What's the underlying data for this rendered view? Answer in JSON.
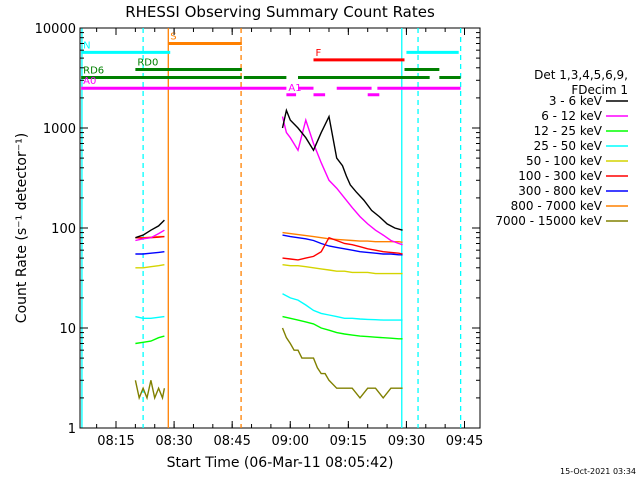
{
  "chart_data": {
    "type": "line",
    "title": "RHESSI Observing Summary Count Rates",
    "xlabel": "Start Time (06-Mar-11 08:05:42)",
    "ylabel": "Count Rate (s⁻¹ detector⁻¹)",
    "yscale": "log",
    "ylim": [
      1,
      10000
    ],
    "xlim_minutes_after_0800": [
      5.7,
      109.0
    ],
    "x_ticks": [
      {
        "label": "08:15",
        "t": 15
      },
      {
        "label": "08:30",
        "t": 30
      },
      {
        "label": "08:45",
        "t": 45
      },
      {
        "label": "09:00",
        "t": 60
      },
      {
        "label": "09:15",
        "t": 75
      },
      {
        "label": "09:30",
        "t": 90
      },
      {
        "label": "09:45",
        "t": 105
      }
    ],
    "y_ticks": [
      {
        "label": "1",
        "v": 1
      },
      {
        "label": "10",
        "v": 10
      },
      {
        "label": "100",
        "v": 100
      },
      {
        "label": "1000",
        "v": 1000
      },
      {
        "label": "10000",
        "v": 10000
      }
    ],
    "legend_title": [
      "Det 1,3,4,5,6,9,",
      "FDecim 1"
    ],
    "legend_placement": "right",
    "series": [
      {
        "name": "3 - 6 keV",
        "color": "#000000",
        "x": [
          20,
          22,
          24,
          26,
          27.5,
          58,
          59,
          60,
          62,
          64,
          66,
          68,
          70,
          72,
          73.5,
          74.5,
          75.5,
          77,
          79,
          81,
          83,
          85,
          87,
          89
        ],
        "y": [
          80,
          85,
          95,
          105,
          120,
          1000,
          1500,
          1200,
          1000,
          800,
          600,
          900,
          1300,
          500,
          420,
          330,
          270,
          230,
          190,
          150,
          130,
          110,
          100,
          95
        ]
      },
      {
        "name": "6 - 12 keV",
        "color": "#ff00ff",
        "x": [
          20,
          22,
          24,
          26,
          27.5,
          58,
          59,
          60,
          62,
          64,
          66,
          68,
          70,
          72,
          74,
          76,
          78,
          80,
          82,
          84,
          86,
          88,
          89
        ],
        "y": [
          75,
          78,
          80,
          88,
          95,
          1300,
          900,
          800,
          600,
          1200,
          700,
          450,
          300,
          250,
          200,
          160,
          130,
          110,
          95,
          85,
          75,
          70,
          68
        ]
      },
      {
        "name": "12 - 25 keV",
        "color": "#00ff00",
        "x": [
          20,
          22,
          24,
          26,
          27.5,
          58,
          60,
          62,
          64,
          66,
          68,
          70,
          72,
          74,
          76,
          78,
          80,
          82,
          84,
          86,
          88,
          89
        ],
        "y": [
          7,
          7.2,
          7.4,
          8,
          8.3,
          13,
          12.5,
          12,
          11.5,
          11,
          10,
          9.5,
          9,
          8.7,
          8.5,
          8.3,
          8.2,
          8.1,
          8,
          7.9,
          7.8,
          7.8
        ]
      },
      {
        "name": "25 - 50 keV",
        "color": "#00ffff",
        "x": [
          20,
          22,
          24,
          26,
          27.5,
          58,
          60,
          62,
          64,
          66,
          68,
          70,
          72,
          74,
          76,
          78,
          80,
          82,
          84,
          86,
          88,
          89
        ],
        "y": [
          13,
          12.5,
          12.5,
          12.8,
          13,
          22,
          20,
          19,
          17,
          15,
          14,
          13.5,
          13,
          12.5,
          12.5,
          12.3,
          12.2,
          12.1,
          12,
          12,
          12,
          12
        ]
      },
      {
        "name": "50 - 100 keV",
        "color": "#d4d400",
        "x": [
          20,
          22,
          24,
          26,
          27.5,
          58,
          60,
          62,
          64,
          66,
          68,
          70,
          72,
          74,
          76,
          78,
          80,
          82,
          84,
          86,
          88,
          89
        ],
        "y": [
          40,
          40,
          41,
          42,
          43,
          43,
          42,
          42,
          41,
          40,
          39,
          38,
          37,
          37,
          36,
          36,
          36,
          35,
          35,
          35,
          35,
          35
        ]
      },
      {
        "name": "100 - 300 keV",
        "color": "#ff0000",
        "x": [
          20,
          22,
          24,
          26,
          27.5,
          58,
          60,
          62,
          64,
          66,
          68,
          70,
          72,
          74,
          76,
          78,
          80,
          82,
          84,
          86,
          88,
          89
        ],
        "y": [
          80,
          79,
          80,
          81,
          82,
          50,
          49,
          48,
          50,
          52,
          58,
          80,
          75,
          70,
          68,
          65,
          62,
          60,
          58,
          57,
          56,
          55
        ]
      },
      {
        "name": "300 - 800 keV",
        "color": "#0000ff",
        "x": [
          20,
          22,
          24,
          26,
          27.5,
          58,
          60,
          62,
          64,
          66,
          68,
          70,
          72,
          74,
          76,
          78,
          80,
          82,
          84,
          86,
          88,
          89
        ],
        "y": [
          55,
          55,
          56,
          57,
          58,
          85,
          82,
          80,
          78,
          75,
          70,
          66,
          64,
          62,
          60,
          58,
          57,
          56,
          55,
          55,
          54,
          54
        ]
      },
      {
        "name": "800 - 7000 keV",
        "color": "#ff8000",
        "x": [
          20,
          22,
          24,
          26,
          27.5,
          58,
          60,
          62,
          64,
          66,
          68,
          70,
          72,
          74,
          76,
          78,
          80,
          82,
          84,
          86,
          88,
          89
        ],
        "y": [
          80,
          80,
          81,
          82,
          82,
          90,
          88,
          86,
          84,
          82,
          80,
          78,
          77,
          76,
          75,
          74,
          74,
          73,
          73,
          73,
          73,
          72
        ]
      },
      {
        "name": "7000 - 15000 keV",
        "color": "#808000",
        "x": [
          20,
          21,
          22,
          23,
          24,
          25,
          26,
          27,
          27.5,
          58,
          59,
          60,
          61,
          62,
          63,
          64,
          65,
          66,
          67,
          68,
          69,
          70,
          72,
          74,
          76,
          78,
          80,
          82,
          84,
          86,
          88,
          89
        ],
        "y": [
          3,
          2,
          2.5,
          2,
          3,
          2,
          2.5,
          2,
          2.5,
          10,
          8,
          7,
          6,
          6,
          5,
          5,
          5,
          5,
          4,
          3.5,
          3.5,
          3,
          2.5,
          2.5,
          2.5,
          2,
          2.5,
          2.5,
          2,
          2.5,
          2.5,
          2.5
        ]
      }
    ],
    "flag_bars": [
      {
        "label": "S",
        "color": "#ff8000",
        "level": 7000,
        "segments": [
          [
            28.5,
            47.5
          ]
        ]
      },
      {
        "label": "N",
        "color": "#00ffff",
        "level": 5700,
        "segments": [
          [
            6,
            29
          ],
          [
            90,
            103.5
          ]
        ]
      },
      {
        "label": "F",
        "color": "#ff0000",
        "level": 4800,
        "segments": [
          [
            66,
            89.5
          ]
        ]
      },
      {
        "label": "RD0",
        "color": "#008000",
        "level": 3850,
        "segments": [
          [
            20,
            47.5
          ],
          [
            89.5,
            98.5
          ]
        ]
      },
      {
        "label": "RD6",
        "color": "#008000",
        "level": 3200,
        "segments": [
          [
            6,
            47.5
          ],
          [
            48,
            59
          ],
          [
            62,
            96
          ],
          [
            98.5,
            104
          ]
        ]
      },
      {
        "label": "A0",
        "color": "#ff00ff",
        "level": 2500,
        "segments": [
          [
            6,
            59
          ],
          [
            62,
            66
          ],
          [
            72,
            81
          ],
          [
            82.5,
            104
          ]
        ]
      },
      {
        "label": "A1",
        "color": "#ff00ff",
        "level": 2150,
        "segments": [
          [
            59,
            61.5
          ],
          [
            66,
            69
          ],
          [
            80,
            83
          ]
        ]
      }
    ],
    "vertical_markers": [
      {
        "t": 6.2,
        "color": "#00ffff",
        "style": "solid"
      },
      {
        "t": 22.0,
        "color": "#00ffff",
        "style": "dashed"
      },
      {
        "t": 28.5,
        "color": "#ff8000",
        "style": "solid"
      },
      {
        "t": 47.3,
        "color": "#ff8000",
        "style": "dashed"
      },
      {
        "t": 88.8,
        "color": "#00ffff",
        "style": "solid"
      },
      {
        "t": 93.0,
        "color": "#00ffff",
        "style": "dashed"
      },
      {
        "t": 104.0,
        "color": "#00ffff",
        "style": "dashed"
      }
    ],
    "timestamp": "15-Oct-2021 03:34"
  }
}
